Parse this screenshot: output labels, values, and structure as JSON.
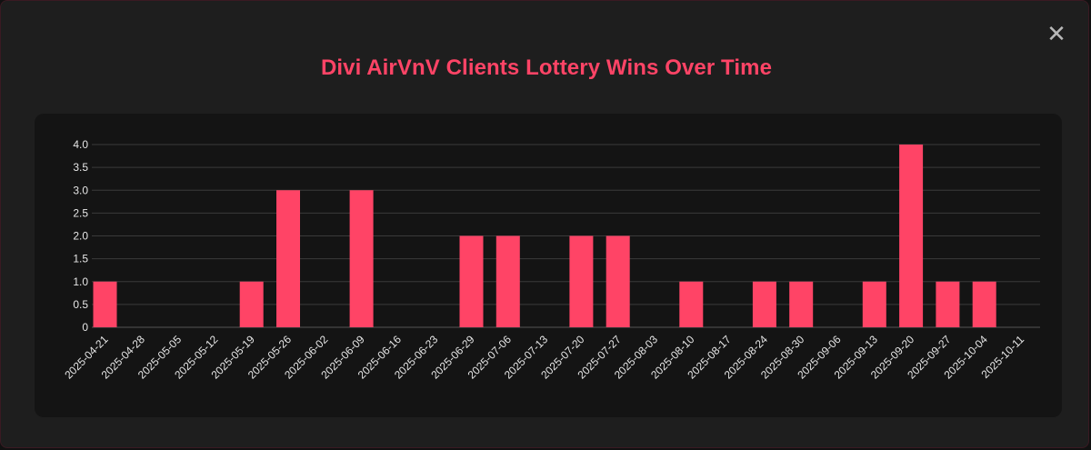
{
  "modal": {
    "title": "Divi AirVnV Clients Lottery Wins Over Time",
    "close_glyph": "✕"
  },
  "chart_data": {
    "type": "bar",
    "title": "Divi AirVnV Clients Lottery Wins Over Time",
    "xlabel": "",
    "ylabel": "",
    "ylim": [
      0,
      4
    ],
    "yticks": [
      "0",
      "0.5",
      "1.0",
      "1.5",
      "2.0",
      "2.5",
      "3.0",
      "3.5",
      "4.0"
    ],
    "grid": true,
    "legend": "none",
    "bar_color": "#ff4466",
    "categories": [
      "2025-04-21",
      "2025-04-28",
      "2025-05-05",
      "2025-05-12",
      "2025-05-19",
      "2025-05-26",
      "2025-06-02",
      "2025-06-09",
      "2025-06-16",
      "2025-06-23",
      "2025-06-29",
      "2025-07-06",
      "2025-07-13",
      "2025-07-20",
      "2025-07-27",
      "2025-08-03",
      "2025-08-10",
      "2025-08-17",
      "2025-08-24",
      "2025-08-30",
      "2025-09-06",
      "2025-09-13",
      "2025-09-20",
      "2025-09-27",
      "2025-10-04",
      "2025-10-11"
    ],
    "values": [
      1,
      0,
      0,
      0,
      1,
      3,
      0,
      3,
      0,
      0,
      2,
      2,
      0,
      2,
      2,
      0,
      1,
      0,
      1,
      1,
      0,
      1,
      4,
      1,
      1,
      0
    ]
  }
}
